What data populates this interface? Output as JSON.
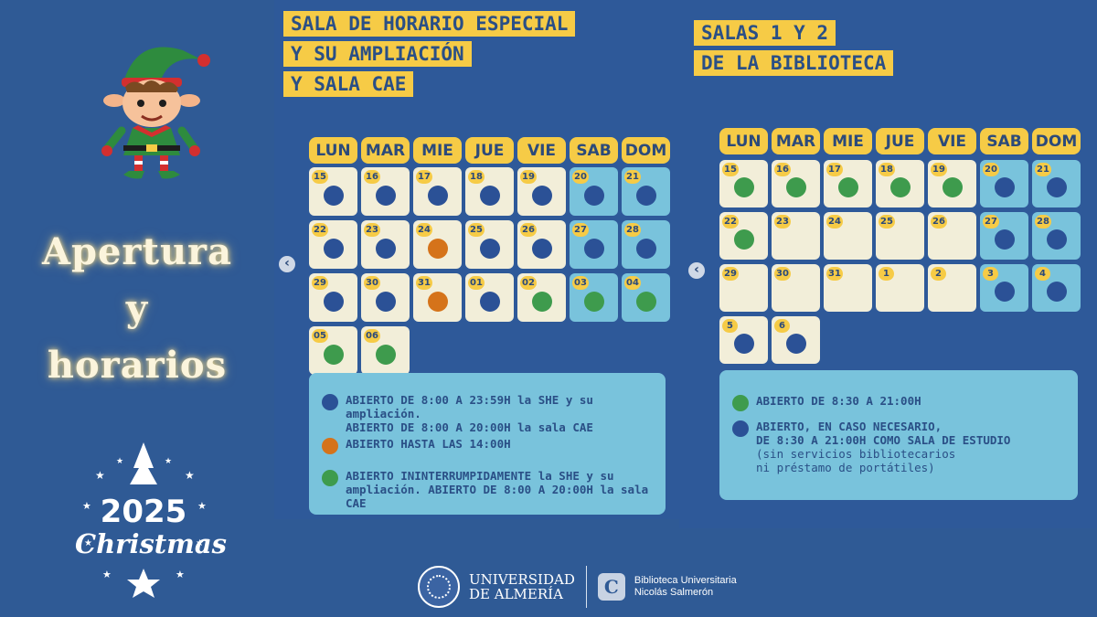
{
  "left": {
    "title_lines": [
      "Apertura",
      "y",
      "horarios"
    ],
    "christmas_year": "2025",
    "christmas_word": "Christmas"
  },
  "panels": [
    {
      "heading_lines": [
        "SALA DE HORARIO ESPECIAL",
        "Y SU AMPLIACIÓN",
        "Y SALA CAE"
      ],
      "days": [
        "LUN",
        "MAR",
        "MIE",
        "JUE",
        "VIE",
        "SAB",
        "DOM"
      ],
      "cells": [
        {
          "day": "15",
          "status": "blue"
        },
        {
          "day": "16",
          "status": "blue"
        },
        {
          "day": "17",
          "status": "blue"
        },
        {
          "day": "18",
          "status": "blue"
        },
        {
          "day": "19",
          "status": "blue"
        },
        {
          "day": "20",
          "status": "blue"
        },
        {
          "day": "21",
          "status": "blue"
        },
        {
          "day": "22",
          "status": "blue"
        },
        {
          "day": "23",
          "status": "blue"
        },
        {
          "day": "24",
          "status": "orange"
        },
        {
          "day": "25",
          "status": "blue"
        },
        {
          "day": "26",
          "status": "blue"
        },
        {
          "day": "27",
          "status": "blue"
        },
        {
          "day": "28",
          "status": "blue"
        },
        {
          "day": "29",
          "status": "blue"
        },
        {
          "day": "30",
          "status": "blue"
        },
        {
          "day": "31",
          "status": "orange"
        },
        {
          "day": "01",
          "status": "blue"
        },
        {
          "day": "02",
          "status": "green"
        },
        {
          "day": "03",
          "status": "green"
        },
        {
          "day": "04",
          "status": "green"
        },
        {
          "day": "05",
          "status": "green"
        },
        {
          "day": "06",
          "status": "green"
        }
      ],
      "legend": [
        {
          "color": "blue",
          "text": "ABIERTO DE 8:00 A 23:59H la SHE y su ampliación.\nABIERTO DE 8:00 A 20:00H la sala CAE",
          "note": ""
        },
        {
          "color": "orange",
          "text": "ABIERTO HASTA LAS 14:00H",
          "note": ""
        },
        {
          "color": "green",
          "text": "ABIERTO ININTERRUMPIDAMENTE la SHE y su\nampliación. ABIERTO DE 8:00 A 20:00H la sala CAE",
          "note": ""
        }
      ]
    },
    {
      "heading_lines": [
        "SALAS 1 Y 2",
        "DE LA BIBLIOTECA"
      ],
      "days": [
        "LUN",
        "MAR",
        "MIE",
        "JUE",
        "VIE",
        "SAB",
        "DOM"
      ],
      "cells": [
        {
          "day": "15",
          "status": "green"
        },
        {
          "day": "16",
          "status": "green"
        },
        {
          "day": "17",
          "status": "green"
        },
        {
          "day": "18",
          "status": "green"
        },
        {
          "day": "19",
          "status": "green"
        },
        {
          "day": "20",
          "status": "blue"
        },
        {
          "day": "21",
          "status": "blue"
        },
        {
          "day": "22",
          "status": "green"
        },
        {
          "day": "23",
          "status": "none"
        },
        {
          "day": "24",
          "status": "none"
        },
        {
          "day": "25",
          "status": "none"
        },
        {
          "day": "26",
          "status": "none"
        },
        {
          "day": "27",
          "status": "blue"
        },
        {
          "day": "28",
          "status": "blue"
        },
        {
          "day": "29",
          "status": "none"
        },
        {
          "day": "30",
          "status": "none"
        },
        {
          "day": "31",
          "status": "none"
        },
        {
          "day": "1",
          "status": "none"
        },
        {
          "day": "2",
          "status": "none"
        },
        {
          "day": "3",
          "status": "blue"
        },
        {
          "day": "4",
          "status": "blue"
        },
        {
          "day": "5",
          "status": "blue"
        },
        {
          "day": "6",
          "status": "blue"
        }
      ],
      "legend": [
        {
          "color": "green",
          "text": "ABIERTO DE 8:30 A 21:00H",
          "note": ""
        },
        {
          "color": "blue",
          "text": "ABIERTO, EN CASO NECESARIO,\nDE 8:30 A 21:00H COMO SALA DE ESTUDIO",
          "note": "(sin servicios bibliotecarios\nni préstamo de portátiles)"
        }
      ]
    }
  ],
  "colors": {
    "blue": "#2b5196",
    "orange": "#d5731a",
    "green": "#3e9b4d",
    "accent_yellow": "#f6cb46",
    "weekend": "#79c3dc",
    "weekday": "#f2eed9"
  },
  "footer": {
    "university_lines": [
      "UNIVERSIDAD",
      "DE ALMERÍA"
    ],
    "library_lines": [
      "Biblioteca Universitaria",
      "Nicolás Salmerón"
    ]
  }
}
